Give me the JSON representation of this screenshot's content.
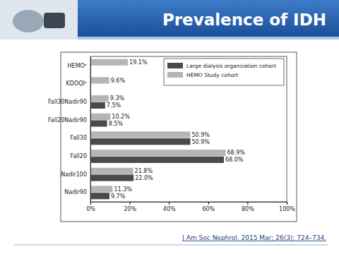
{
  "chart_data": {
    "type": "bar",
    "orientation": "horizontal",
    "title": "Prevalence of IDH",
    "annotations": [
      "J Am Soc Nephrol. 2015 Mar; 26(3): 724–734."
    ],
    "categories": [
      "HEMOᵃ",
      "KDOQIᵃ",
      "Fall30Nadir90",
      "Fall20Nadir90",
      "Fall30",
      "Fall20",
      "Nadir100",
      "Nadir90"
    ],
    "series": [
      {
        "name": "Large dialysis organization cohort",
        "color": "#4a4a4a",
        "values": [
          null,
          null,
          7.5,
          8.5,
          50.9,
          68.0,
          22.0,
          9.7
        ],
        "value_labels": [
          null,
          null,
          "7.5%",
          "8.5%",
          "50.9%",
          "68.0%",
          "22.0%",
          "9.7%"
        ]
      },
      {
        "name": "HEMO Study cohort",
        "color": "#b5b5b5",
        "values": [
          19.1,
          9.6,
          9.3,
          10.2,
          50.9,
          68.9,
          21.8,
          11.3
        ],
        "value_labels": [
          "19.1%",
          "9.6%",
          "9.3%",
          "10.2%",
          "50.9%",
          "68.9%",
          "21.8%",
          "11.3%"
        ]
      }
    ],
    "xlim": [
      0,
      100
    ],
    "xticks": [
      {
        "value": 0,
        "label": "0%"
      },
      {
        "value": 20,
        "label": "20%"
      },
      {
        "value": 40,
        "label": "40%"
      },
      {
        "value": 60,
        "label": "60%"
      },
      {
        "value": 80,
        "label": "80%"
      },
      {
        "value": 100,
        "label": "100%"
      }
    ],
    "grid": false,
    "legend": "upper right",
    "data_labels": true
  }
}
